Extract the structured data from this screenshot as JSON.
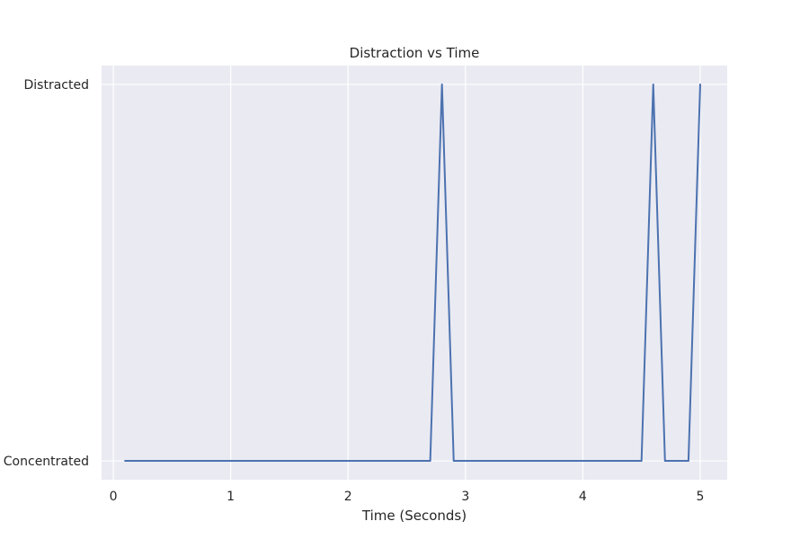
{
  "chart_data": {
    "type": "line",
    "title": "Distraction vs Time",
    "xlabel": "Time (Seconds)",
    "ylabel": "",
    "xlim": [
      -0.1,
      5.23
    ],
    "ylim": [
      -0.05,
      1.05
    ],
    "x_ticks": [
      0,
      1,
      2,
      3,
      4,
      5
    ],
    "x_tick_labels": [
      "0",
      "1",
      "2",
      "3",
      "4",
      "5"
    ],
    "y_ticks": [
      0,
      1
    ],
    "y_tick_labels": [
      "Concentrated",
      "Distracted"
    ],
    "grid": true,
    "legend": false,
    "background_color": "#eaeaf2",
    "grid_color": "#ffffff",
    "series": [
      {
        "color": "#4c72b0",
        "x": [
          0.1,
          0.2,
          0.3,
          0.4,
          0.5,
          0.6,
          0.7,
          0.8,
          0.9,
          1.0,
          1.1,
          1.2,
          1.3,
          1.4,
          1.5,
          1.6,
          1.7,
          1.8,
          1.9,
          2.0,
          2.1,
          2.2,
          2.3,
          2.4,
          2.5,
          2.6,
          2.7,
          2.8,
          2.9,
          3.0,
          3.1,
          3.2,
          3.3,
          3.4,
          3.5,
          3.6,
          3.7,
          3.8,
          3.9,
          4.0,
          4.1,
          4.2,
          4.3,
          4.4,
          4.5,
          4.6,
          4.7,
          4.8,
          4.9,
          5.0
        ],
        "values": [
          0,
          0,
          0,
          0,
          0,
          0,
          0,
          0,
          0,
          0,
          0,
          0,
          0,
          0,
          0,
          0,
          0,
          0,
          0,
          0,
          0,
          0,
          0,
          0,
          0,
          0,
          0,
          1,
          0,
          0,
          0,
          0,
          0,
          0,
          0,
          0,
          0,
          0,
          0,
          0,
          0,
          0,
          0,
          0,
          0,
          1,
          0,
          0,
          0,
          1
        ]
      }
    ]
  }
}
